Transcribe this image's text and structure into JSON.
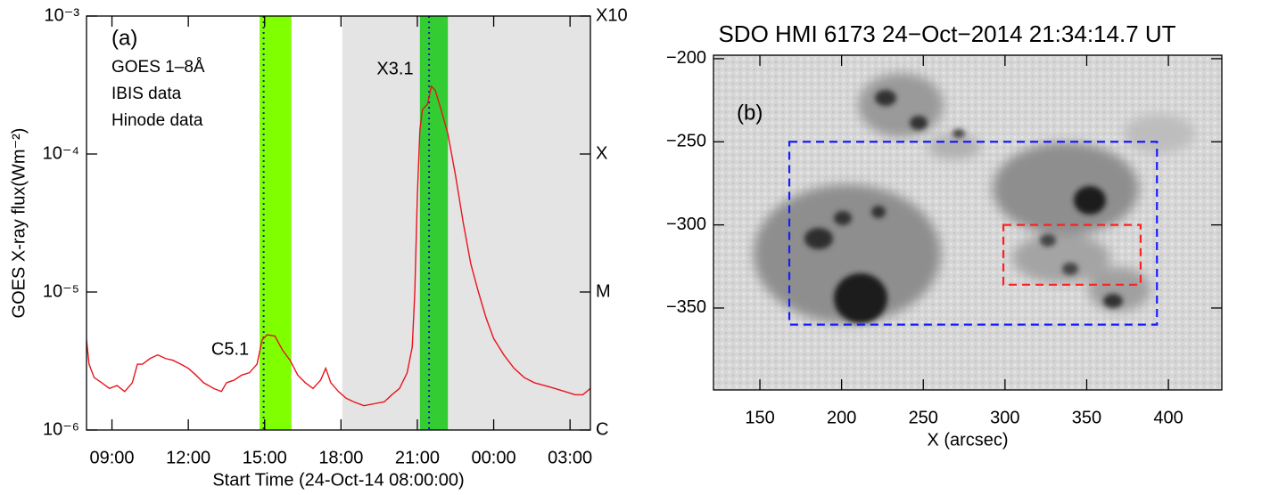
{
  "chart_data": [
    {
      "type": "line",
      "xlabel": "Start Time (24-Oct-14 08:00:00)",
      "ylabel": "GOES X-ray flux(Wm⁻²)",
      "xlim": [
        0,
        19.8
      ],
      "xticks": [
        {
          "value": 1,
          "label": "09:00"
        },
        {
          "value": 4,
          "label": "12:00"
        },
        {
          "value": 7,
          "label": "15:00"
        },
        {
          "value": 10,
          "label": "18:00"
        },
        {
          "value": 13,
          "label": "21:00"
        },
        {
          "value": 16,
          "label": "00:00"
        },
        {
          "value": 19,
          "label": "03:00"
        }
      ],
      "log_y": true,
      "ylim": [
        1e-06,
        0.001
      ],
      "yticks": [
        {
          "value": 1e-06,
          "label": "10⁻⁶"
        },
        {
          "value": 1e-05,
          "label": "10⁻⁵"
        },
        {
          "value": 0.0001,
          "label": "10⁻⁴"
        },
        {
          "value": 0.001,
          "label": "10⁻³"
        }
      ],
      "y2lim": [
        1e-06,
        0.001
      ],
      "y2ticks": [
        {
          "value": 1e-06,
          "label": "C"
        },
        {
          "value": 1e-05,
          "label": "M"
        },
        {
          "value": 0.0001,
          "label": "X"
        },
        {
          "value": 0.001,
          "label": "X10"
        }
      ],
      "x": [
        0.0,
        0.1,
        0.3,
        0.6,
        0.9,
        1.2,
        1.5,
        1.8,
        2.0,
        2.2,
        2.5,
        2.8,
        3.1,
        3.4,
        3.7,
        4.0,
        4.3,
        4.6,
        5.0,
        5.3,
        5.5,
        5.8,
        6.1,
        6.4,
        6.7,
        6.9,
        7.1,
        7.4,
        7.7,
        8.0,
        8.3,
        8.6,
        8.9,
        9.2,
        9.4,
        9.6,
        9.9,
        10.2,
        10.5,
        10.9,
        11.3,
        11.7,
        12.0,
        12.3,
        12.6,
        12.8,
        12.9,
        13.0,
        13.1,
        13.2,
        13.4,
        13.55,
        13.7,
        13.9,
        14.2,
        14.5,
        14.8,
        15.1,
        15.4,
        15.7,
        16.0,
        16.4,
        16.8,
        17.2,
        17.6,
        18.0,
        18.4,
        18.8,
        19.2,
        19.5,
        19.8
      ],
      "series": [
        {
          "name": "GOES 1–8Å",
          "color": "#e8141c",
          "values": [
            4.5e-06,
            3e-06,
            2.4e-06,
            2.2e-06,
            2e-06,
            2.1e-06,
            1.9e-06,
            2.2e-06,
            3e-06,
            3e-06,
            3.3e-06,
            3.5e-06,
            3.3e-06,
            3.2e-06,
            3e-06,
            2.8e-06,
            2.5e-06,
            2.2e-06,
            2e-06,
            1.9e-06,
            2.2e-06,
            2.3e-06,
            2.5e-06,
            2.6e-06,
            3e-06,
            4.5e-06,
            4.9e-06,
            4.8e-06,
            3.8e-06,
            3.2e-06,
            2.5e-06,
            2.2e-06,
            2e-06,
            2.3e-06,
            2.8e-06,
            2.2e-06,
            1.9e-06,
            1.7e-06,
            1.6e-06,
            1.5e-06,
            1.55e-06,
            1.6e-06,
            1.8e-06,
            2e-06,
            2.6e-06,
            4e-06,
            1e-05,
            5e-05,
            0.00015,
            0.00021,
            0.00023,
            0.00031,
            0.00029,
            0.00022,
            0.00014,
            7e-05,
            3.2e-05,
            1.6e-05,
            1e-05,
            6.5e-06,
            4.6e-06,
            3.5e-06,
            2.8e-06,
            2.4e-06,
            2.2e-06,
            2.1e-06,
            2e-06,
            1.9e-06,
            1.8e-06,
            1.8e-06,
            2e-06
          ]
        }
      ],
      "regions": [
        {
          "name": "Hinode data",
          "color": "#c8c8c8",
          "ranges": [
            {
              "from": 10.05,
              "to": 19.8,
              "color": "#e4e4e4"
            }
          ]
        },
        {
          "name": "IBIS data",
          "color": "#33cc33",
          "ranges": [
            {
              "from": 6.8,
              "to": 8.05,
              "color": "#7fff00"
            },
            {
              "from": 13.1,
              "to": 14.2,
              "color": "#33cc33"
            }
          ]
        }
      ],
      "vlines": [
        {
          "x": 6.96,
          "color": "#1a1aaa"
        },
        {
          "x": 13.46,
          "color": "#1a1aaa"
        }
      ],
      "annotations": [
        {
          "text": "(a)"
        },
        {
          "text": "C5.1",
          "color": "#e8141c"
        },
        {
          "text": "X3.1",
          "color": "#e8141c"
        }
      ]
    },
    {
      "type": "image",
      "title": "SDO HMI 6173 24−Oct−2014 21:34:14.7 UT",
      "xlabel": "X (arcsec)",
      "xlim": [
        121.6,
        432.7
      ],
      "xticks": [
        150,
        200,
        250,
        300,
        350,
        400
      ],
      "ylim": [
        -399.3,
        -197.9
      ],
      "yticks": [
        {
          "value": -200,
          "label": "−200"
        },
        {
          "value": -250,
          "label": "−250"
        },
        {
          "value": -300,
          "label": "−300"
        },
        {
          "value": -350,
          "label": "−350"
        }
      ],
      "boxes": [
        {
          "color": "#1a1aff",
          "x": [
            168,
            393
          ],
          "y": [
            -360,
            -250
          ]
        },
        {
          "color": "#ff2020",
          "x": [
            299,
            383
          ],
          "y": [
            -336,
            -300
          ]
        }
      ],
      "annotations": [
        {
          "text": "(b)"
        }
      ]
    }
  ]
}
